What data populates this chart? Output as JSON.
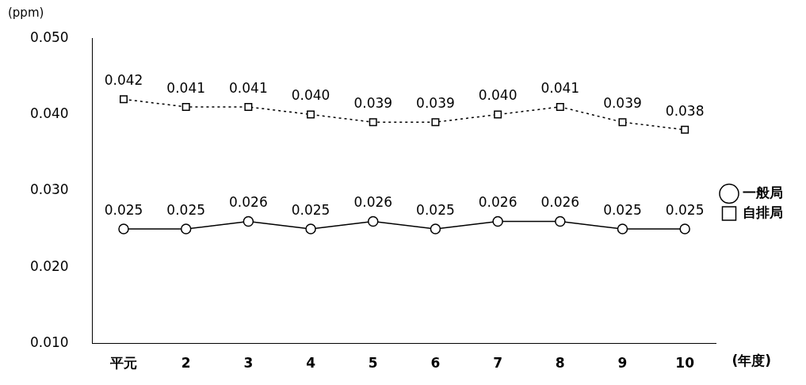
{
  "chart_data": {
    "type": "line",
    "categories": [
      "平元",
      "2",
      "3",
      "4",
      "5",
      "6",
      "7",
      "8",
      "9",
      "10"
    ],
    "series": [
      {
        "name": "一般局",
        "color": "#000000",
        "marker": "circle",
        "line_style": "solid",
        "values": [
          0.025,
          0.025,
          0.026,
          0.025,
          0.026,
          0.025,
          0.026,
          0.026,
          0.025,
          0.025
        ],
        "value_labels": [
          "0.025",
          "0.025",
          "0.026",
          "0.025",
          "0.026",
          "0.025",
          "0.026",
          "0.026",
          "0.025",
          "0.025"
        ]
      },
      {
        "name": "自排局",
        "color": "#000000",
        "marker": "square",
        "line_style": "dotted",
        "values": [
          0.042,
          0.041,
          0.041,
          0.04,
          0.039,
          0.039,
          0.04,
          0.041,
          0.039,
          0.038
        ],
        "value_labels": [
          "0.042",
          "0.041",
          "0.041",
          "0.040",
          "0.039",
          "0.039",
          "0.040",
          "0.041",
          "0.039",
          "0.038"
        ]
      }
    ],
    "ylabel": "(ppm)",
    "xlabel": "(年度)",
    "ylim": [
      0.01,
      0.05
    ],
    "yticks": [
      {
        "value": 0.01,
        "label": "0.010"
      },
      {
        "value": 0.02,
        "label": "0.020"
      },
      {
        "value": 0.03,
        "label": "0.030"
      },
      {
        "value": 0.04,
        "label": "0.040"
      },
      {
        "value": 0.05,
        "label": "0.050"
      }
    ],
    "grid": false,
    "legend": "right"
  }
}
